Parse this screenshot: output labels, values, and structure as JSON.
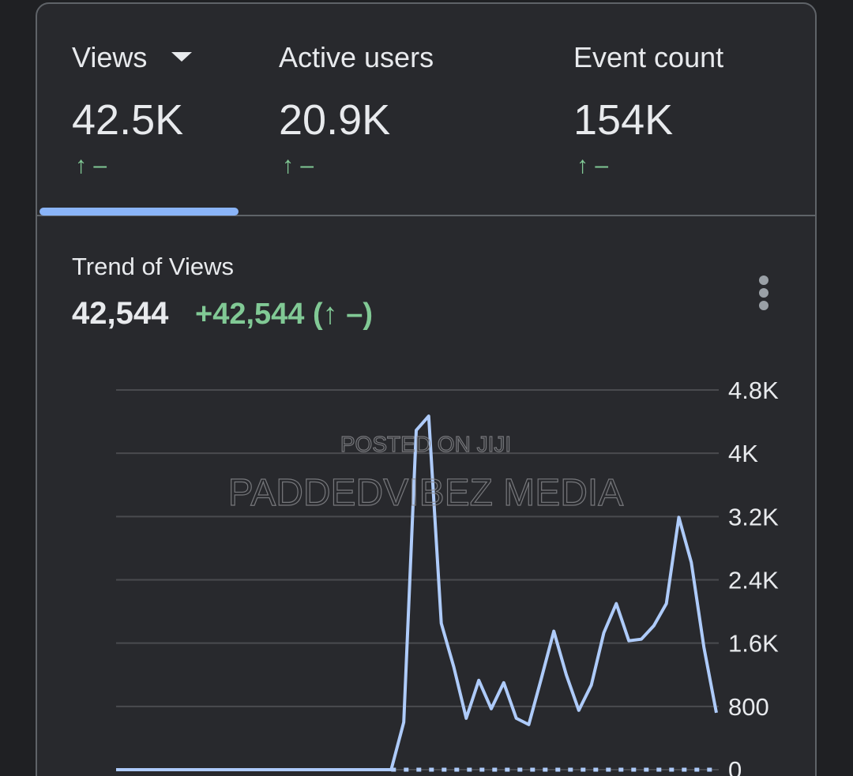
{
  "header": {
    "metrics": [
      {
        "label": "Views",
        "value": "42.5K",
        "change": "↑ –"
      },
      {
        "label": "Active users",
        "value": "20.9K",
        "change": "↑ –"
      },
      {
        "label": "Event count",
        "value": "154K",
        "change": "↑ –"
      }
    ]
  },
  "chart_data": {
    "type": "line",
    "title": "Trend of Views",
    "total": "42,544",
    "change": "+42,544 (↑ –)",
    "watermarks": [
      "POSTED ON JIJI",
      "PADDEDVIBEZ MEDIA"
    ],
    "series": [
      {
        "color": "#aecbfa",
        "values": [
          0,
          0,
          0,
          0,
          0,
          0,
          0,
          0,
          0,
          0,
          0,
          0,
          0,
          0,
          0,
          0,
          0,
          0,
          0,
          0,
          0,
          0,
          0,
          600,
          4290,
          4470,
          1850,
          1300,
          650,
          1130,
          770,
          1100,
          650,
          570,
          1150,
          1750,
          1200,
          750,
          1070,
          1730,
          2100,
          1630,
          1650,
          1820,
          2100,
          3190,
          2620,
          1550,
          720
        ]
      },
      {
        "color": "#aecbfa",
        "dashed": true,
        "values": [
          null,
          null,
          null,
          null,
          null,
          null,
          null,
          null,
          null,
          null,
          null,
          null,
          null,
          null,
          null,
          null,
          null,
          null,
          null,
          null,
          null,
          null,
          0,
          0,
          0,
          0,
          0,
          0,
          0,
          0,
          0,
          0,
          0,
          0,
          0,
          0,
          0,
          0,
          0,
          0,
          0,
          0,
          0,
          0,
          0,
          0,
          0,
          0,
          0
        ]
      }
    ],
    "ylim": [
      0,
      4800
    ],
    "yticks": [
      0,
      800,
      {
        "value": 1600,
        "label": "1.6K"
      },
      {
        "value": 2400,
        "label": "2.4K"
      },
      {
        "value": 3200,
        "label": "3.2K"
      },
      {
        "value": 4000,
        "label": "4K"
      },
      {
        "value": 4800,
        "label": "4.8K"
      }
    ],
    "grid": true
  }
}
